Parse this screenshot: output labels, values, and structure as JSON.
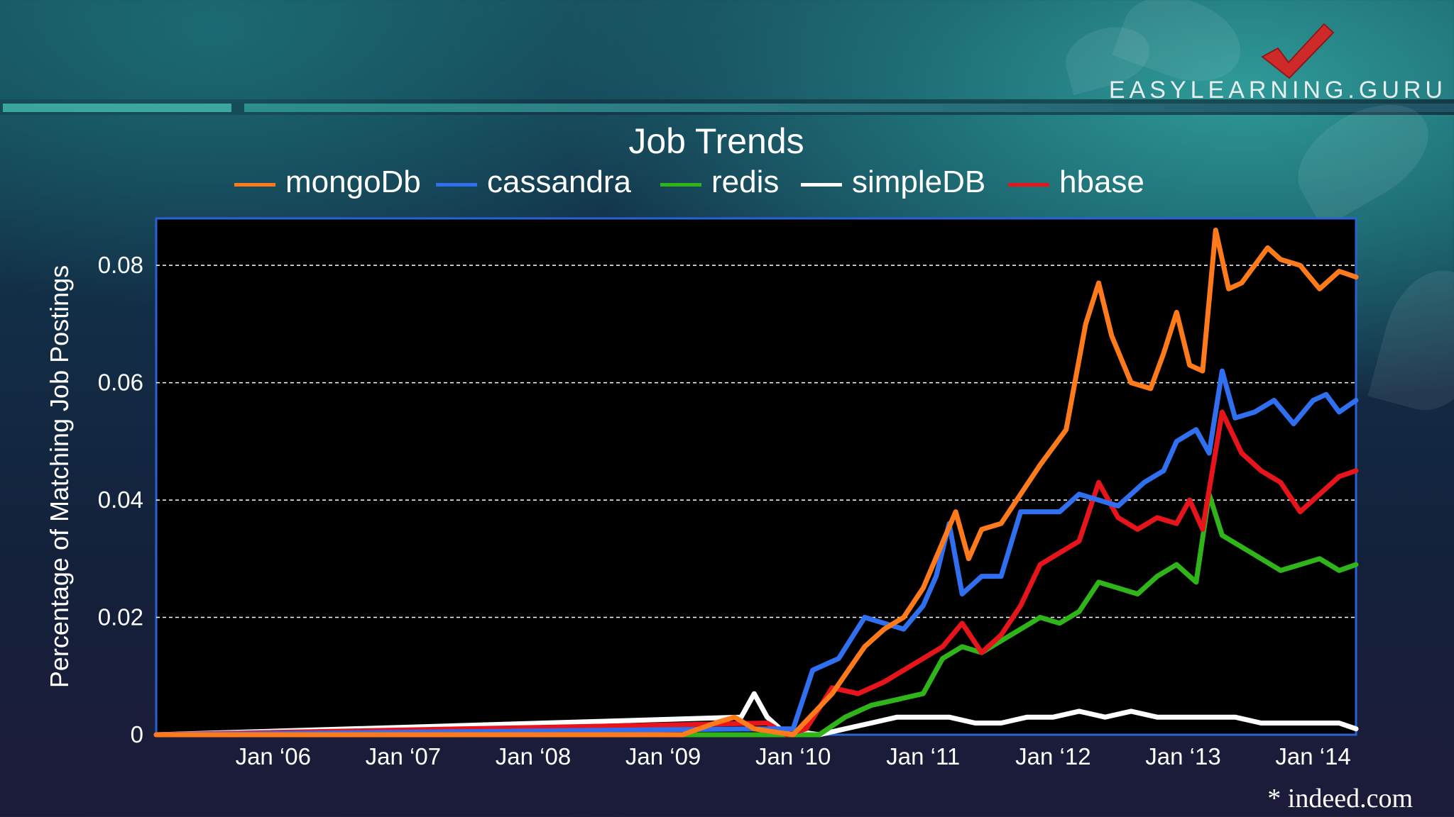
{
  "brand": {
    "logo_text": "EASYLEARNING.GURU"
  },
  "footnote": "* indeed.com",
  "colors": {
    "mongoDb": "#ff7a1a",
    "cassandra": "#2f6ff0",
    "redis": "#2fb51a",
    "simpleDB": "#ffffff",
    "hbase": "#e8141c",
    "plot_background": "#000000",
    "plot_border": "#2a62d6"
  },
  "chart_data": {
    "type": "line",
    "title": "Job Trends",
    "xlabel": "",
    "ylabel": "Percentage of Matching Job Postings",
    "xlim": [
      2005.1,
      2014.33
    ],
    "ylim": [
      0,
      0.088
    ],
    "x_ticks": [
      {
        "label": "Jan ‘06",
        "value": 2006
      },
      {
        "label": "Jan ‘07",
        "value": 2007
      },
      {
        "label": "Jan ‘08",
        "value": 2008
      },
      {
        "label": "Jan ‘09",
        "value": 2009
      },
      {
        "label": "Jan ‘10",
        "value": 2010
      },
      {
        "label": "Jan ‘11",
        "value": 2011
      },
      {
        "label": "Jan ‘12",
        "value": 2012
      },
      {
        "label": "Jan ‘13",
        "value": 2013
      },
      {
        "label": "Jan ‘14",
        "value": 2014
      }
    ],
    "y_ticks": [
      {
        "label": "0",
        "value": 0
      },
      {
        "label": "0.02",
        "value": 0.02
      },
      {
        "label": "0.04",
        "value": 0.04
      },
      {
        "label": "0.06",
        "value": 0.06
      },
      {
        "label": "0.08",
        "value": 0.08
      }
    ],
    "grid": "horizontal dashed",
    "legend_position": "top",
    "series": [
      {
        "name": "mongoDb",
        "x": [
          2005.1,
          2009.15,
          2009.4,
          2009.55,
          2009.7,
          2010.0,
          2010.3,
          2010.55,
          2010.7,
          2010.85,
          2011.0,
          2011.25,
          2011.35,
          2011.45,
          2011.6,
          2011.75,
          2011.9,
          2012.1,
          2012.25,
          2012.35,
          2012.45,
          2012.6,
          2012.75,
          2012.85,
          2012.95,
          2013.05,
          2013.15,
          2013.25,
          2013.35,
          2013.45,
          2013.55,
          2013.65,
          2013.75,
          2013.9,
          2014.05,
          2014.2,
          2014.33
        ],
        "y": [
          0,
          0,
          0.002,
          0.003,
          0.001,
          0,
          0.007,
          0.015,
          0.018,
          0.02,
          0.025,
          0.038,
          0.03,
          0.035,
          0.036,
          0.041,
          0.046,
          0.052,
          0.07,
          0.077,
          0.068,
          0.06,
          0.059,
          0.065,
          0.072,
          0.063,
          0.062,
          0.086,
          0.076,
          0.077,
          0.08,
          0.083,
          0.081,
          0.08,
          0.076,
          0.079,
          0.078
        ]
      },
      {
        "name": "cassandra",
        "x": [
          2005.1,
          2009.7,
          2010.0,
          2010.15,
          2010.35,
          2010.55,
          2010.7,
          2010.85,
          2011.0,
          2011.1,
          2011.2,
          2011.3,
          2011.45,
          2011.6,
          2011.75,
          2011.9,
          2012.05,
          2012.2,
          2012.35,
          2012.5,
          2012.7,
          2012.85,
          2012.95,
          2013.1,
          2013.2,
          2013.3,
          2013.4,
          2013.55,
          2013.7,
          2013.85,
          2014.0,
          2014.1,
          2014.2,
          2014.33
        ],
        "y": [
          0,
          0.001,
          0.001,
          0.011,
          0.013,
          0.02,
          0.019,
          0.018,
          0.022,
          0.027,
          0.036,
          0.024,
          0.027,
          0.027,
          0.038,
          0.038,
          0.038,
          0.041,
          0.04,
          0.039,
          0.043,
          0.045,
          0.05,
          0.052,
          0.048,
          0.062,
          0.054,
          0.055,
          0.057,
          0.053,
          0.057,
          0.058,
          0.055,
          0.057
        ]
      },
      {
        "name": "redis",
        "x": [
          2005.1,
          2010.2,
          2010.4,
          2010.6,
          2010.8,
          2011.0,
          2011.15,
          2011.3,
          2011.45,
          2011.6,
          2011.75,
          2011.9,
          2012.05,
          2012.2,
          2012.35,
          2012.5,
          2012.65,
          2012.8,
          2012.95,
          2013.1,
          2013.2,
          2013.3,
          2013.45,
          2013.6,
          2013.75,
          2013.9,
          2014.05,
          2014.2,
          2014.33
        ],
        "y": [
          0,
          0,
          0.003,
          0.005,
          0.006,
          0.007,
          0.013,
          0.015,
          0.014,
          0.016,
          0.018,
          0.02,
          0.019,
          0.021,
          0.026,
          0.025,
          0.024,
          0.027,
          0.029,
          0.026,
          0.041,
          0.034,
          0.032,
          0.03,
          0.028,
          0.029,
          0.03,
          0.028,
          0.029
        ]
      },
      {
        "name": "simpleDB",
        "x": [
          2005.1,
          2009.6,
          2009.7,
          2009.8,
          2009.9,
          2010.2,
          2010.4,
          2010.6,
          2010.8,
          2011.0,
          2011.2,
          2011.4,
          2011.6,
          2011.8,
          2012.0,
          2012.2,
          2012.4,
          2012.6,
          2012.8,
          2013.0,
          2013.2,
          2013.4,
          2013.6,
          2013.8,
          2014.0,
          2014.2,
          2014.33
        ],
        "y": [
          0,
          0.003,
          0.007,
          0.003,
          0.001,
          0,
          0.001,
          0.002,
          0.003,
          0.003,
          0.003,
          0.002,
          0.002,
          0.003,
          0.003,
          0.004,
          0.003,
          0.004,
          0.003,
          0.003,
          0.003,
          0.003,
          0.002,
          0.002,
          0.002,
          0.002,
          0.001
        ]
      },
      {
        "name": "hbase",
        "x": [
          2005.1,
          2009.8,
          2009.95,
          2010.1,
          2010.3,
          2010.5,
          2010.7,
          2010.85,
          2011.0,
          2011.15,
          2011.3,
          2011.45,
          2011.6,
          2011.75,
          2011.9,
          2012.05,
          2012.2,
          2012.35,
          2012.5,
          2012.65,
          2012.8,
          2012.95,
          2013.05,
          2013.15,
          2013.3,
          2013.45,
          2013.6,
          2013.75,
          2013.9,
          2014.05,
          2014.2,
          2014.33
        ],
        "y": [
          0,
          0.002,
          0,
          0.001,
          0.008,
          0.007,
          0.009,
          0.011,
          0.013,
          0.015,
          0.019,
          0.014,
          0.017,
          0.022,
          0.029,
          0.031,
          0.033,
          0.043,
          0.037,
          0.035,
          0.037,
          0.036,
          0.04,
          0.035,
          0.055,
          0.048,
          0.045,
          0.043,
          0.038,
          0.041,
          0.044,
          0.045
        ]
      }
    ]
  }
}
